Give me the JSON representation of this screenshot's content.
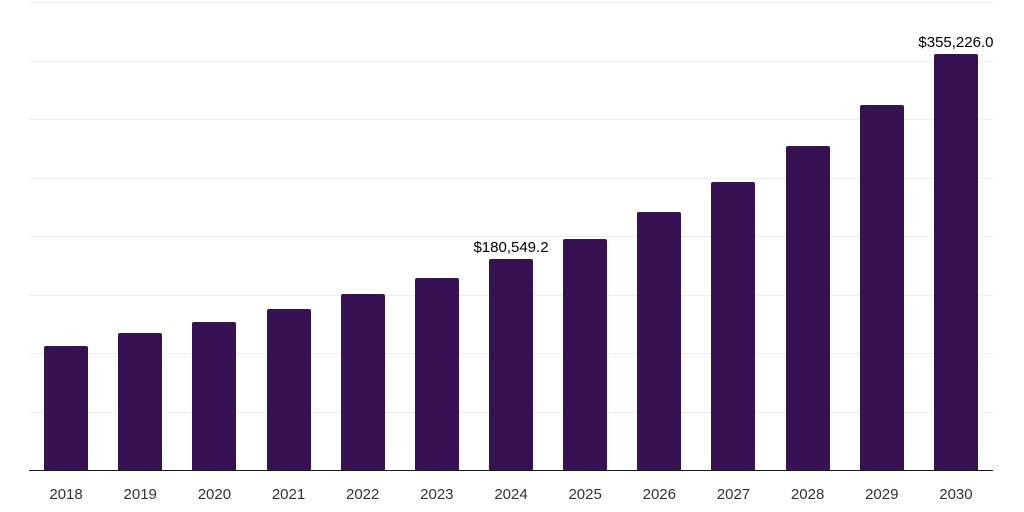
{
  "chart_data": {
    "type": "bar",
    "title": "",
    "xlabel": "",
    "ylabel": "",
    "categories": [
      "2018",
      "2019",
      "2020",
      "2021",
      "2022",
      "2023",
      "2024",
      "2025",
      "2026",
      "2027",
      "2028",
      "2029",
      "2030"
    ],
    "values": [
      106200,
      117300,
      126100,
      137400,
      150200,
      163800,
      180549.2,
      197600,
      220400,
      246400,
      276800,
      312300,
      355226.0
    ],
    "data_labels": {
      "2024": "$180,549.2",
      "2030": "$355,226.0"
    },
    "ylim": [
      0,
      400000
    ],
    "gridline_step": 50000,
    "grid": "horizontal",
    "y_axis_tick_labels_visible": false,
    "legend": "none"
  },
  "colors": {
    "bar": "#371253",
    "gridline": "#ededed",
    "axis_line": "#1a1a1a",
    "x_tick_label": "#333333",
    "data_label": "#000000",
    "background": "#ffffff"
  }
}
